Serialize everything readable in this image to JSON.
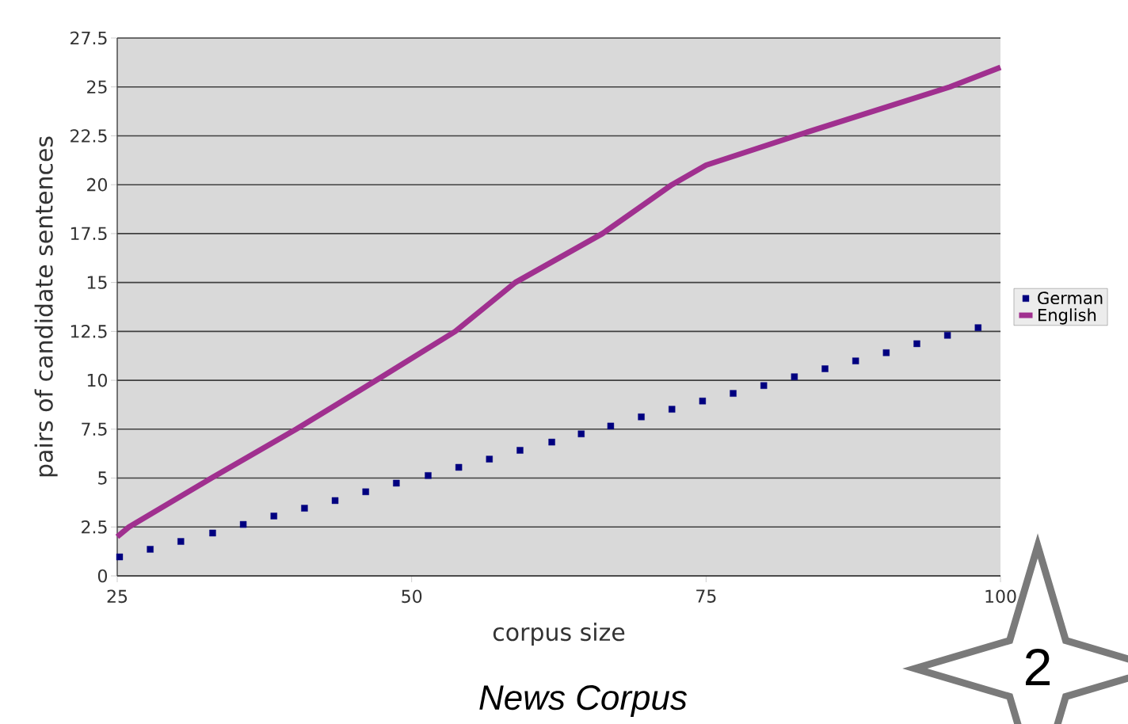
{
  "chart_data": {
    "type": "scatter",
    "xlabel": "corpus size",
    "ylabel": "pairs of candidate sentences",
    "xlim": [
      25,
      100
    ],
    "xticks": [
      25,
      50,
      75,
      100
    ],
    "ylim": [
      0,
      27.5
    ],
    "yticks": [
      0,
      2.5,
      5,
      7.5,
      10,
      12.5,
      15,
      17.5,
      20,
      22.5,
      25,
      27.5
    ],
    "grid": "y",
    "legend": "right",
    "series": [
      {
        "name": "German",
        "marker": "square",
        "color": "#000080",
        "x": [
          25.2,
          27.8,
          30.4,
          33.1,
          35.7,
          38.3,
          40.9,
          43.5,
          46.1,
          48.7,
          51.4,
          54.0,
          56.6,
          59.2,
          61.9,
          64.4,
          66.9,
          69.5,
          72.1,
          74.7,
          77.3,
          79.9,
          82.5,
          85.1,
          87.7,
          90.3,
          92.9,
          95.5,
          98.1
        ],
        "values": [
          0.97,
          1.36,
          1.76,
          2.19,
          2.63,
          3.06,
          3.46,
          3.85,
          4.3,
          4.74,
          5.13,
          5.55,
          5.97,
          6.42,
          6.84,
          7.26,
          7.66,
          8.13,
          8.52,
          8.94,
          9.33,
          9.73,
          10.18,
          10.59,
          10.99,
          11.41,
          11.87,
          12.3,
          12.69
        ]
      },
      {
        "name": "English",
        "type": "line",
        "marker": "none",
        "line_style": "solid",
        "color": "#a0308f",
        "x": [
          25,
          26,
          33,
          40.2,
          47,
          53.7,
          58.8,
          66.2,
          72.1,
          75,
          82.6,
          95.7,
          100
        ],
        "values": [
          2.0,
          2.5,
          5,
          7.5,
          10,
          12.5,
          15,
          17.5,
          20,
          21,
          22.5,
          25,
          26
        ]
      }
    ],
    "annotations": [
      "News Corpus",
      "2"
    ]
  }
}
